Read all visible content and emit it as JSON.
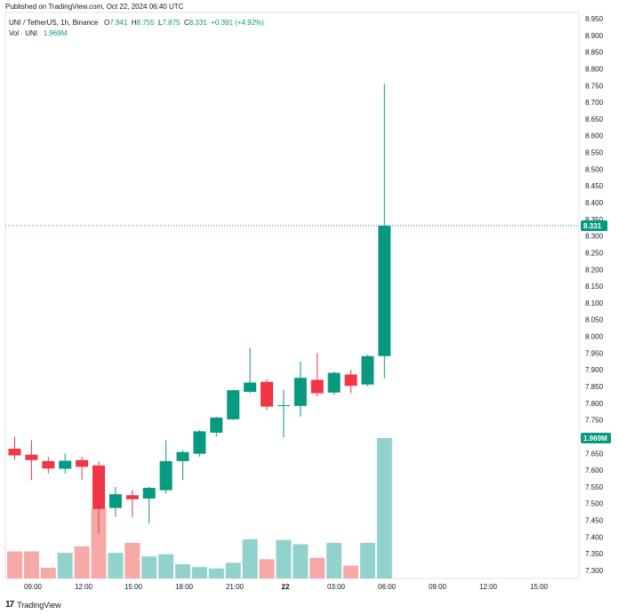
{
  "header": {
    "published": "Published on TradingView.com, Oct 22, 2024 06:40 UTC",
    "symbol": "UNI / TetherUS, 1h, Binance",
    "o_label": "O",
    "o_value": "7.941",
    "h_label": "H",
    "h_value": "8.755",
    "l_label": "L",
    "l_value": "7.875",
    "c_label": "C",
    "c_value": "8.331",
    "change": "+0.391 (+4.92%)",
    "vol_label": "Vol · UNI",
    "vol_value": "1.969M"
  },
  "footer": {
    "logo": "17",
    "brand": "TradingView"
  },
  "colors": {
    "up": "#089981",
    "down": "#f23645",
    "up_vol": "#92d2cc",
    "down_vol": "#f7a9a7",
    "grid": "#f0f3fa",
    "axis_text": "#131722"
  },
  "chart_data": {
    "type": "candlestick",
    "price_axis": {
      "min": 7.3,
      "max": 8.95,
      "ticks": [
        "8.950",
        "8.900",
        "8.850",
        "8.800",
        "8.750",
        "8.700",
        "8.650",
        "8.600",
        "8.550",
        "8.500",
        "8.450",
        "8.400",
        "8.350",
        "8.300",
        "8.250",
        "8.200",
        "8.150",
        "8.100",
        "8.050",
        "8.000",
        "7.950",
        "7.900",
        "7.850",
        "7.800",
        "7.750",
        "7.700",
        "7.650",
        "7.600",
        "7.550",
        "7.500",
        "7.450",
        "7.400",
        "7.350",
        "7.300"
      ]
    },
    "time_ticks": [
      "09:00",
      "12:00",
      "15:00",
      "18:00",
      "21:00",
      "22",
      "03:00",
      "06:00",
      "09:00",
      "12:00",
      "15:00"
    ],
    "last_price": "8.331",
    "last_volume": "1.969M",
    "candles": [
      {
        "o": 7.664,
        "h": 7.7,
        "l": 7.63,
        "c": 7.644,
        "v": 0.38
      },
      {
        "o": 7.646,
        "h": 7.69,
        "l": 7.57,
        "c": 7.63,
        "v": 0.38
      },
      {
        "o": 7.627,
        "h": 7.64,
        "l": 7.59,
        "c": 7.605,
        "v": 0.15
      },
      {
        "o": 7.604,
        "h": 7.65,
        "l": 7.59,
        "c": 7.628,
        "v": 0.36
      },
      {
        "o": 7.63,
        "h": 7.64,
        "l": 7.57,
        "c": 7.61,
        "v": 0.45
      },
      {
        "o": 7.614,
        "h": 7.625,
        "l": 7.41,
        "c": 7.484,
        "v": 0.98
      },
      {
        "o": 7.487,
        "h": 7.55,
        "l": 7.46,
        "c": 7.528,
        "v": 0.36
      },
      {
        "o": 7.525,
        "h": 7.54,
        "l": 7.46,
        "c": 7.513,
        "v": 0.5
      },
      {
        "o": 7.515,
        "h": 7.55,
        "l": 7.44,
        "c": 7.547,
        "v": 0.31
      },
      {
        "o": 7.54,
        "h": 7.69,
        "l": 7.53,
        "c": 7.627,
        "v": 0.34
      },
      {
        "o": 7.627,
        "h": 7.66,
        "l": 7.57,
        "c": 7.654,
        "v": 0.2
      },
      {
        "o": 7.649,
        "h": 7.72,
        "l": 7.64,
        "c": 7.716,
        "v": 0.16
      },
      {
        "o": 7.712,
        "h": 7.76,
        "l": 7.7,
        "c": 7.757,
        "v": 0.14
      },
      {
        "o": 7.752,
        "h": 7.84,
        "l": 7.75,
        "c": 7.839,
        "v": 0.22
      },
      {
        "o": 7.834,
        "h": 7.965,
        "l": 7.83,
        "c": 7.862,
        "v": 0.55
      },
      {
        "o": 7.864,
        "h": 7.872,
        "l": 7.78,
        "c": 7.79,
        "v": 0.27
      },
      {
        "o": 7.794,
        "h": 7.84,
        "l": 7.698,
        "c": 7.794,
        "v": 0.54
      },
      {
        "o": 7.792,
        "h": 7.925,
        "l": 7.76,
        "c": 7.876,
        "v": 0.48
      },
      {
        "o": 7.87,
        "h": 7.95,
        "l": 7.82,
        "c": 7.83,
        "v": 0.29
      },
      {
        "o": 7.832,
        "h": 7.895,
        "l": 7.825,
        "c": 7.891,
        "v": 0.5
      },
      {
        "o": 7.886,
        "h": 7.9,
        "l": 7.83,
        "c": 7.852,
        "v": 0.18
      },
      {
        "o": 7.856,
        "h": 7.946,
        "l": 7.85,
        "c": 7.941,
        "v": 0.5
      },
      {
        "o": 7.941,
        "h": 8.755,
        "l": 7.875,
        "c": 8.331,
        "v": 1.969
      }
    ]
  }
}
